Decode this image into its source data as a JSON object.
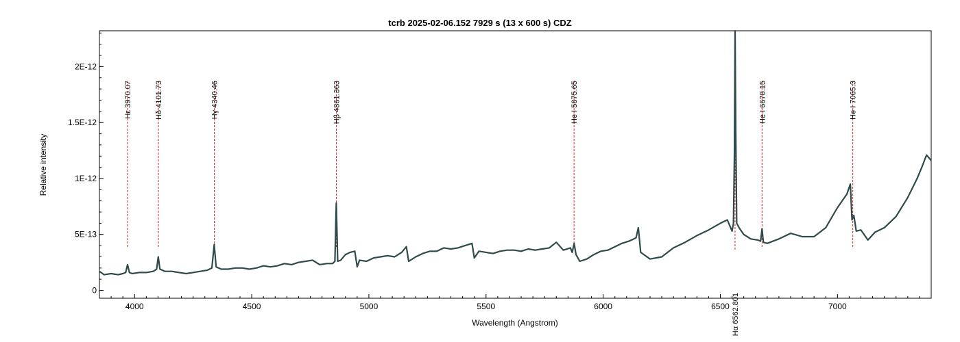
{
  "chart_data": {
    "type": "line",
    "title": "tcrb   2025-02-06.152   7929 s (13 x 600 s)   CDZ",
    "xlabel": "Wavelength (Angstrom)",
    "ylabel": "Relative intensity",
    "xlim": [
      3850,
      7400
    ],
    "ylim": [
      -7e-14,
      2.32e-12
    ],
    "xticks": [
      4000,
      4500,
      5000,
      5500,
      6000,
      6500,
      7000
    ],
    "yticks": [
      {
        "value": 0,
        "label": "0"
      },
      {
        "value": 5e-13,
        "label": "5E-13"
      },
      {
        "value": 1e-12,
        "label": "1E-12"
      },
      {
        "value": 1.5e-12,
        "label": "1.5E-12"
      },
      {
        "value": 2e-12,
        "label": "2E-12"
      }
    ],
    "grid": false,
    "line_color": "#2f4a4a",
    "marker_color": "#dd2222",
    "series": [
      {
        "x": [
          3850,
          3870,
          3900,
          3930,
          3950,
          3962,
          3970,
          3978,
          3990,
          4020,
          4050,
          4080,
          4094,
          4101,
          4108,
          4130,
          4160,
          4190,
          4220,
          4250,
          4280,
          4310,
          4330,
          4340,
          4348,
          4370,
          4400,
          4430,
          4460,
          4490,
          4520,
          4550,
          4580,
          4610,
          4640,
          4670,
          4700,
          4730,
          4760,
          4790,
          4820,
          4845,
          4855,
          4861,
          4867,
          4880,
          4900,
          4920,
          4940,
          4950,
          4960,
          4990,
          5020,
          5050,
          5080,
          5110,
          5140,
          5160,
          5170,
          5200,
          5230,
          5260,
          5290,
          5320,
          5350,
          5380,
          5410,
          5440,
          5450,
          5470,
          5500,
          5530,
          5560,
          5590,
          5620,
          5650,
          5680,
          5710,
          5740,
          5770,
          5800,
          5830,
          5860,
          5868,
          5876,
          5884,
          5900,
          5930,
          5960,
          5990,
          6020,
          6050,
          6080,
          6110,
          6140,
          6150,
          6160,
          6200,
          6250,
          6300,
          6350,
          6400,
          6450,
          6500,
          6530,
          6550,
          6556,
          6560,
          6563,
          6566,
          6570,
          6580,
          6600,
          6630,
          6660,
          6672,
          6678,
          6684,
          6700,
          6750,
          6800,
          6850,
          6900,
          6950,
          7000,
          7040,
          7055,
          7062,
          7070,
          7080,
          7100,
          7130,
          7160,
          7200,
          7250,
          7300,
          7340,
          7360,
          7380,
          7400
        ],
        "y": [
          1.7e-13,
          1.4e-13,
          1.5e-13,
          1.4e-13,
          1.5e-13,
          1.6e-13,
          2.3e-13,
          1.6e-13,
          1.5e-13,
          1.6e-13,
          1.6e-13,
          1.7e-13,
          1.9e-13,
          3e-13,
          1.9e-13,
          1.7e-13,
          1.7e-13,
          1.6e-13,
          1.5e-13,
          1.6e-13,
          1.7e-13,
          1.8e-13,
          2e-13,
          4.1e-13,
          2.1e-13,
          1.9e-13,
          1.9e-13,
          2e-13,
          2e-13,
          1.9e-13,
          2e-13,
          2.2e-13,
          2.1e-13,
          2.2e-13,
          2.4e-13,
          2.3e-13,
          2.5e-13,
          2.6e-13,
          2.7e-13,
          2.3e-13,
          2.4e-13,
          2.4e-13,
          2.6e-13,
          7.8e-13,
          2.6e-13,
          2.7e-13,
          3.2e-13,
          3.4e-13,
          3.5e-13,
          2.1e-13,
          2.7e-13,
          2.6e-13,
          2.9e-13,
          3e-13,
          3.1e-13,
          3e-13,
          3.4e-13,
          3.9e-13,
          2.6e-13,
          3e-13,
          3.3e-13,
          3.5e-13,
          3.5e-13,
          3.8e-13,
          3.7e-13,
          3.8e-13,
          4e-13,
          4.2e-13,
          2.9e-13,
          3.5e-13,
          3.4e-13,
          3.3e-13,
          3.5e-13,
          3.6e-13,
          3.6e-13,
          3.5e-13,
          3.7e-13,
          3.6e-13,
          3.7e-13,
          3.8e-13,
          4.3e-13,
          3.6e-13,
          3.8e-13,
          3.4e-13,
          4.2e-13,
          3.2e-13,
          2.6e-13,
          2.8e-13,
          3.2e-13,
          3.5e-13,
          3.6e-13,
          3.9e-13,
          4.2e-13,
          4.4e-13,
          4.7e-13,
          5.6e-13,
          3.4e-13,
          2.8e-13,
          3e-13,
          3.8e-13,
          4.3e-13,
          4.9e-13,
          5.4e-13,
          6e-13,
          6.3e-13,
          5.3e-13,
          6e-13,
          1.2e-12,
          2.35e-12,
          1.4e-12,
          6e-13,
          5.6e-13,
          5e-13,
          4.6e-13,
          4.5e-13,
          4.4e-13,
          5.5e-13,
          4.3e-13,
          4.2e-13,
          4.6e-13,
          5.1e-13,
          4.8e-13,
          4.8e-13,
          5.6e-13,
          7.4e-13,
          8.6e-13,
          9.5e-13,
          6.3e-13,
          6.7e-13,
          5.3e-13,
          5.4e-13,
          4.5e-13,
          5.2e-13,
          5.6e-13,
          6.6e-13,
          8.3e-13,
          1e-12,
          1.1e-12,
          1.21e-12,
          1.16e-12
        ]
      }
    ],
    "lines": [
      {
        "label": "Hε 3970.07",
        "x": 3970.07,
        "pos": "top"
      },
      {
        "label": "Hδ 4101.73",
        "x": 4101.73,
        "pos": "top"
      },
      {
        "label": "Hγ 4340.46",
        "x": 4340.46,
        "pos": "top"
      },
      {
        "label": "Hβ 4861.363",
        "x": 4861.363,
        "pos": "top"
      },
      {
        "label": "He I 5875.65",
        "x": 5875.65,
        "pos": "top"
      },
      {
        "label": "Hα 6562.801",
        "x": 6562.801,
        "pos": "bottom"
      },
      {
        "label": "He I 6678.15",
        "x": 6678.15,
        "pos": "top"
      },
      {
        "label": "He I 7065.3",
        "x": 7065.3,
        "pos": "top"
      }
    ]
  }
}
